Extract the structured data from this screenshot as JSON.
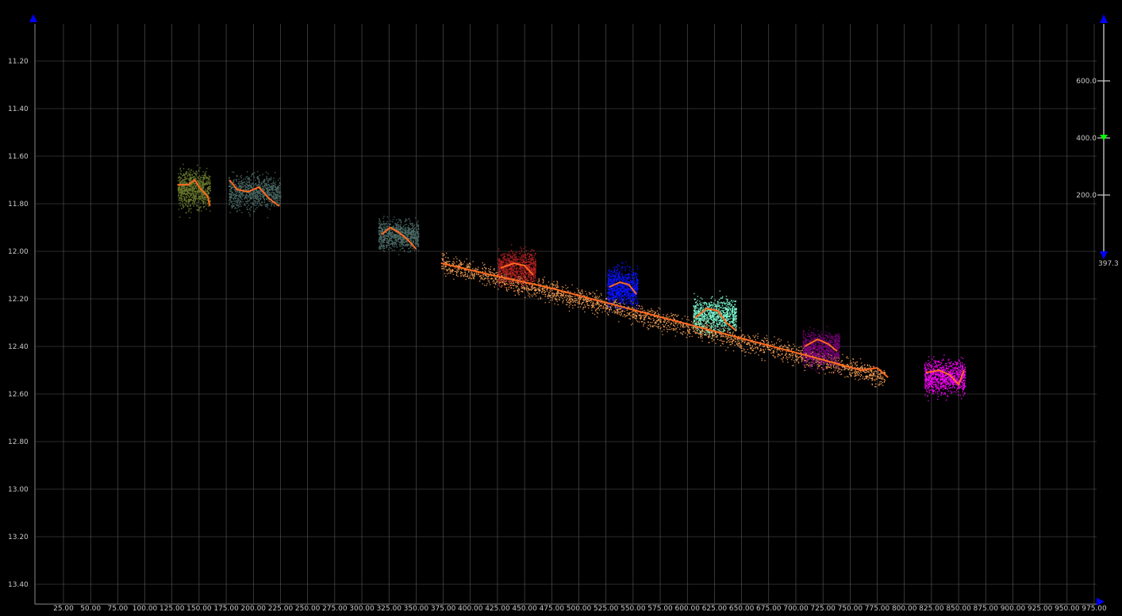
{
  "chart_data": {
    "type": "scatter",
    "background": "#000000",
    "grid": true,
    "grid_color": "#5a5a5a",
    "axis_arrow_color": "#0000ff",
    "xlim": [
      0,
      975
    ],
    "ylim": [
      11.04,
      13.5
    ],
    "y_inverted": true,
    "x_ticks": [
      "25.00",
      "50.00",
      "75.00",
      "100.00",
      "125.00",
      "150.00",
      "175.00",
      "200.00",
      "225.00",
      "250.00",
      "275.00",
      "300.00",
      "325.00",
      "350.00",
      "375.00",
      "400.00",
      "425.00",
      "450.00",
      "475.00",
      "500.00",
      "525.00",
      "550.00",
      "575.00",
      "600.00",
      "625.00",
      "650.00",
      "675.00",
      "700.00",
      "725.00",
      "750.00",
      "775.00",
      "800.00",
      "825.00",
      "850.00",
      "875.00",
      "900.00",
      "925.00",
      "950.00",
      "975.00"
    ],
    "y_ticks": [
      "11.20",
      "11.40",
      "11.60",
      "11.80",
      "12.00",
      "12.20",
      "12.40",
      "12.60",
      "12.80",
      "13.00",
      "13.20",
      "13.40"
    ],
    "clusters": [
      {
        "color": "#6b7d2e",
        "x": [
          130,
          160
        ],
        "y_center": 11.74,
        "y_spread": 0.09,
        "trend": [
          [
            130,
            11.72
          ],
          [
            140,
            11.72
          ],
          [
            146,
            11.7
          ],
          [
            150,
            11.73
          ],
          [
            158,
            11.77
          ],
          [
            160,
            11.81
          ]
        ]
      },
      {
        "color": "#4e6e6a",
        "x": [
          177,
          225
        ],
        "y_center": 11.75,
        "y_spread": 0.08,
        "trend": [
          [
            178,
            11.7
          ],
          [
            185,
            11.74
          ],
          [
            195,
            11.75
          ],
          [
            205,
            11.73
          ],
          [
            215,
            11.78
          ],
          [
            224,
            11.81
          ]
        ]
      },
      {
        "color": "#4e6e6a",
        "x": [
          315,
          352
        ],
        "y_center": 11.93,
        "y_spread": 0.07,
        "trend": [
          [
            318,
            11.93
          ],
          [
            326,
            11.9
          ],
          [
            334,
            11.92
          ],
          [
            342,
            11.95
          ],
          [
            350,
            11.99
          ]
        ]
      },
      {
        "color": "#b22222",
        "x": [
          425,
          460
        ],
        "y_center": 12.07,
        "y_spread": 0.08,
        "trend": [
          [
            428,
            12.07
          ],
          [
            440,
            12.05
          ],
          [
            450,
            12.06
          ],
          [
            458,
            12.1
          ]
        ]
      },
      {
        "color": "#0a14ff",
        "x": [
          526,
          554
        ],
        "y_center": 12.15,
        "y_spread": 0.09,
        "trend": [
          [
            528,
            12.15
          ],
          [
            538,
            12.13
          ],
          [
            546,
            12.14
          ],
          [
            553,
            12.18
          ]
        ]
      },
      {
        "color": "#7fffd4",
        "x": [
          605,
          645
        ],
        "y_center": 12.27,
        "y_spread": 0.08,
        "trend": [
          [
            607,
            12.28
          ],
          [
            618,
            12.24
          ],
          [
            628,
            12.25
          ],
          [
            636,
            12.3
          ],
          [
            644,
            12.33
          ]
        ]
      },
      {
        "color": "#800080",
        "x": [
          706,
          740
        ],
        "y_center": 12.41,
        "y_spread": 0.08,
        "trend": [
          [
            708,
            12.4
          ],
          [
            720,
            12.37
          ],
          [
            730,
            12.39
          ],
          [
            738,
            12.42
          ]
        ]
      },
      {
        "color": "#ff00ff",
        "x": [
          818,
          856
        ],
        "y_center": 12.53,
        "y_spread": 0.08,
        "trend": [
          [
            820,
            12.51
          ],
          [
            832,
            12.5
          ],
          [
            842,
            12.52
          ],
          [
            850,
            12.56
          ],
          [
            855,
            12.5
          ]
        ]
      }
    ],
    "band": {
      "color": "#ffa55a",
      "x": [
        373,
        782
      ],
      "y_start": 12.05,
      "y_end": 12.53,
      "spread": 0.045,
      "trend": [
        [
          373,
          12.05
        ],
        [
          420,
          12.1
        ],
        [
          470,
          12.15
        ],
        [
          520,
          12.21
        ],
        [
          570,
          12.27
        ],
        [
          620,
          12.33
        ],
        [
          670,
          12.39
        ],
        [
          720,
          12.45
        ],
        [
          760,
          12.5
        ],
        [
          775,
          12.49
        ],
        [
          785,
          12.53
        ]
      ]
    },
    "trend_color": "#ff6a20"
  },
  "gauge": {
    "tick_labels": [
      "600.0",
      "400.0",
      "200.0"
    ],
    "tick_values": [
      600,
      400,
      200
    ],
    "range": [
      0,
      800
    ],
    "current_value": 400,
    "marker_color": "#00ff00",
    "bottom_label": "397.3",
    "arrow_color": "#0000ff"
  }
}
